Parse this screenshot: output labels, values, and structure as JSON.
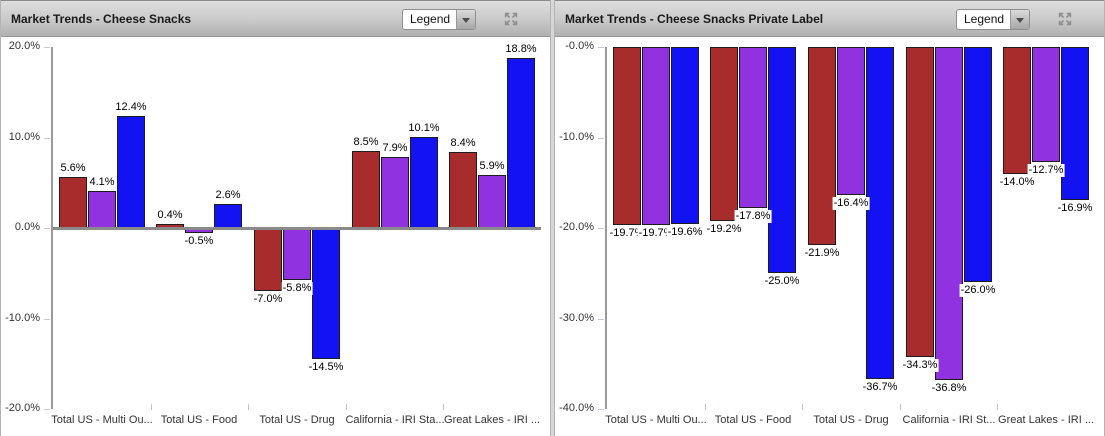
{
  "panels": [
    {
      "title": "Market Trends - Cheese Snacks",
      "legend": {
        "label": "Legend"
      },
      "chart_data": {
        "type": "bar",
        "categories": [
          "Total US - Multi Ou...",
          "Total US - Food",
          "Total US - Drug",
          "California - IRI Sta...",
          "Great Lakes - IRI ..."
        ],
        "series": [
          {
            "name": "red",
            "color": "#A82C2C",
            "values": [
              5.6,
              0.4,
              -7.0,
              8.5,
              8.4
            ],
            "labels": [
              "5.6%",
              "0.4%",
              "-7.0%",
              "8.5%",
              "8.4%"
            ]
          },
          {
            "name": "purple",
            "color": "#9132E0",
            "values": [
              4.1,
              -0.5,
              -5.8,
              7.9,
              5.9
            ],
            "labels": [
              "4.1%",
              "-0.5%",
              "-5.8%",
              "7.9%",
              "5.9%"
            ]
          },
          {
            "name": "blue",
            "color": "#1212F2",
            "values": [
              12.4,
              2.6,
              -14.5,
              10.1,
              18.8
            ],
            "labels": [
              "12.4%",
              "2.6%",
              "-14.5%",
              "10.1%",
              "18.8%"
            ]
          }
        ],
        "ylim": [
          -20,
          20
        ],
        "yticks": [
          {
            "value": 20,
            "label": "20.0%"
          },
          {
            "value": 10,
            "label": "10.0%"
          },
          {
            "value": 0,
            "label": "0.0%"
          },
          {
            "value": -10,
            "label": "-10.0%"
          },
          {
            "value": -20,
            "label": "-20.0%"
          }
        ],
        "baseline": 0,
        "grid": false,
        "legend_position": "collapsed-dropdown"
      }
    },
    {
      "title": "Market Trends - Cheese Snacks Private Label",
      "legend": {
        "label": "Legend"
      },
      "chart_data": {
        "type": "bar",
        "categories": [
          "Total US - Multi Ou...",
          "Total US - Food",
          "Total US - Drug",
          "California - IRI St...",
          "Great Lakes - IRI ..."
        ],
        "series": [
          {
            "name": "red",
            "color": "#A82C2C",
            "values": [
              -19.7,
              -19.2,
              -21.9,
              -34.3,
              -14.0
            ],
            "labels": [
              "-19.7%",
              "-19.2%",
              "-21.9%",
              "-34.3%",
              "-14.0%"
            ]
          },
          {
            "name": "purple",
            "color": "#9132E0",
            "values": [
              -19.7,
              -17.8,
              -16.4,
              -36.8,
              -12.7
            ],
            "labels": [
              "-19.7%",
              "-17.8%",
              "-16.4%",
              "-36.8%",
              "-12.7%"
            ]
          },
          {
            "name": "blue",
            "color": "#1212F2",
            "values": [
              -19.6,
              -25.0,
              -36.7,
              -26.0,
              -16.9
            ],
            "labels": [
              "-19.6%",
              "-25.0%",
              "-36.7%",
              "-26.0%",
              "-16.9%"
            ]
          }
        ],
        "ylim": [
          -40,
          0
        ],
        "yticks": [
          {
            "value": 0,
            "label": "-0.0%"
          },
          {
            "value": -10,
            "label": "-10.0%"
          },
          {
            "value": -20,
            "label": "-20.0%"
          },
          {
            "value": -30,
            "label": "-30.0%"
          },
          {
            "value": -40,
            "label": "-40.0%"
          }
        ],
        "baseline": null,
        "grid": false,
        "legend_position": "collapsed-dropdown"
      }
    }
  ]
}
